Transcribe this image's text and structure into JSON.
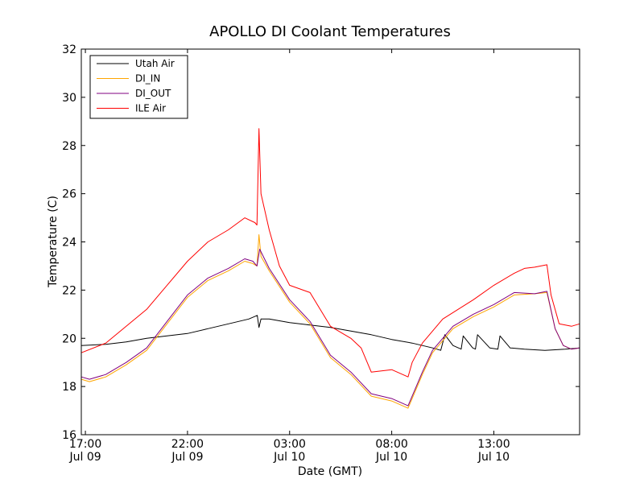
{
  "chart_data": {
    "type": "line",
    "title": "APOLLO DI Coolant Temperatures",
    "xlabel": "Date (GMT)",
    "ylabel": "Temperature (C)",
    "xlim": [
      "2012-07-09 16:48",
      "2012-07-10 17:12"
    ],
    "ylim": [
      16,
      32
    ],
    "yticks": [
      16,
      18,
      20,
      22,
      24,
      26,
      28,
      30,
      32
    ],
    "xticks": [
      {
        "t": "2012-07-09 17:00",
        "time": "17:00",
        "date": "Jul 09"
      },
      {
        "t": "2012-07-09 22:00",
        "time": "22:00",
        "date": "Jul 09"
      },
      {
        "t": "2012-07-10 03:00",
        "time": "03:00",
        "date": "Jul 10"
      },
      {
        "t": "2012-07-10 08:00",
        "time": "08:00",
        "date": "Jul 10"
      },
      {
        "t": "2012-07-10 13:00",
        "time": "13:00",
        "date": "Jul 10"
      }
    ],
    "grid": false,
    "legend": "top-left",
    "series": [
      {
        "name": "Utah Air",
        "color": "#000000",
        "points": [
          [
            "2012-07-09 16:48",
            19.7
          ],
          [
            "2012-07-09 18:00",
            19.75
          ],
          [
            "2012-07-09 19:00",
            19.85
          ],
          [
            "2012-07-09 20:00",
            20.0
          ],
          [
            "2012-07-09 21:00",
            20.1
          ],
          [
            "2012-07-09 22:00",
            20.2
          ],
          [
            "2012-07-09 23:00",
            20.4
          ],
          [
            "2012-07-10 00:00",
            20.6
          ],
          [
            "2012-07-10 01:00",
            20.8
          ],
          [
            "2012-07-10 01:25",
            20.95
          ],
          [
            "2012-07-10 01:30",
            20.45
          ],
          [
            "2012-07-10 01:36",
            20.8
          ],
          [
            "2012-07-10 02:00",
            20.8
          ],
          [
            "2012-07-10 03:00",
            20.65
          ],
          [
            "2012-07-10 04:00",
            20.55
          ],
          [
            "2012-07-10 05:00",
            20.45
          ],
          [
            "2012-07-10 06:00",
            20.3
          ],
          [
            "2012-07-10 07:00",
            20.15
          ],
          [
            "2012-07-10 08:00",
            19.95
          ],
          [
            "2012-07-10 09:00",
            19.8
          ],
          [
            "2012-07-10 10:00",
            19.6
          ],
          [
            "2012-07-10 10:24",
            19.5
          ],
          [
            "2012-07-10 10:36",
            20.15
          ],
          [
            "2012-07-10 11:00",
            19.7
          ],
          [
            "2012-07-10 11:24",
            19.55
          ],
          [
            "2012-07-10 11:30",
            20.1
          ],
          [
            "2012-07-10 11:58",
            19.6
          ],
          [
            "2012-07-10 12:06",
            19.55
          ],
          [
            "2012-07-10 12:12",
            20.15
          ],
          [
            "2012-07-10 12:48",
            19.6
          ],
          [
            "2012-07-10 13:12",
            19.55
          ],
          [
            "2012-07-10 13:18",
            20.1
          ],
          [
            "2012-07-10 13:48",
            19.6
          ],
          [
            "2012-07-10 14:30",
            19.55
          ],
          [
            "2012-07-10 15:30",
            19.5
          ],
          [
            "2012-07-10 16:30",
            19.55
          ],
          [
            "2012-07-10 17:12",
            19.6
          ]
        ]
      },
      {
        "name": "DI_IN",
        "color": "#ffa500",
        "points": [
          [
            "2012-07-09 16:48",
            18.3
          ],
          [
            "2012-07-09 17:12",
            18.2
          ],
          [
            "2012-07-09 18:00",
            18.4
          ],
          [
            "2012-07-09 19:00",
            18.9
          ],
          [
            "2012-07-09 20:00",
            19.5
          ],
          [
            "2012-07-09 21:00",
            20.6
          ],
          [
            "2012-07-09 22:00",
            21.7
          ],
          [
            "2012-07-09 23:00",
            22.4
          ],
          [
            "2012-07-10 00:00",
            22.8
          ],
          [
            "2012-07-10 00:48",
            23.2
          ],
          [
            "2012-07-10 01:12",
            23.1
          ],
          [
            "2012-07-10 01:24",
            23.0
          ],
          [
            "2012-07-10 01:30",
            24.3
          ],
          [
            "2012-07-10 01:36",
            23.4
          ],
          [
            "2012-07-10 02:00",
            22.8
          ],
          [
            "2012-07-10 03:00",
            21.5
          ],
          [
            "2012-07-10 04:00",
            20.6
          ],
          [
            "2012-07-10 05:00",
            19.2
          ],
          [
            "2012-07-10 06:00",
            18.5
          ],
          [
            "2012-07-10 07:00",
            17.6
          ],
          [
            "2012-07-10 08:00",
            17.4
          ],
          [
            "2012-07-10 08:48",
            17.1
          ],
          [
            "2012-07-10 09:30",
            18.5
          ],
          [
            "2012-07-10 10:00",
            19.4
          ],
          [
            "2012-07-10 11:00",
            20.4
          ],
          [
            "2012-07-10 12:00",
            20.9
          ],
          [
            "2012-07-10 13:00",
            21.3
          ],
          [
            "2012-07-10 14:00",
            21.8
          ],
          [
            "2012-07-10 15:00",
            21.85
          ],
          [
            "2012-07-10 15:36",
            21.9
          ],
          [
            "2012-07-10 16:00",
            20.4
          ],
          [
            "2012-07-10 16:24",
            19.7
          ],
          [
            "2012-07-10 16:48",
            19.55
          ],
          [
            "2012-07-10 17:12",
            19.6
          ]
        ]
      },
      {
        "name": "DI_OUT",
        "color": "#800080",
        "points": [
          [
            "2012-07-09 16:48",
            18.4
          ],
          [
            "2012-07-09 17:12",
            18.3
          ],
          [
            "2012-07-09 18:00",
            18.5
          ],
          [
            "2012-07-09 19:00",
            19.0
          ],
          [
            "2012-07-09 20:00",
            19.6
          ],
          [
            "2012-07-09 21:00",
            20.7
          ],
          [
            "2012-07-09 22:00",
            21.8
          ],
          [
            "2012-07-09 23:00",
            22.5
          ],
          [
            "2012-07-10 00:00",
            22.9
          ],
          [
            "2012-07-10 00:48",
            23.3
          ],
          [
            "2012-07-10 01:12",
            23.2
          ],
          [
            "2012-07-10 01:24",
            23.0
          ],
          [
            "2012-07-10 01:32",
            23.7
          ],
          [
            "2012-07-10 02:00",
            22.9
          ],
          [
            "2012-07-10 03:00",
            21.6
          ],
          [
            "2012-07-10 04:00",
            20.7
          ],
          [
            "2012-07-10 05:00",
            19.3
          ],
          [
            "2012-07-10 06:00",
            18.6
          ],
          [
            "2012-07-10 07:00",
            17.7
          ],
          [
            "2012-07-10 08:00",
            17.5
          ],
          [
            "2012-07-10 08:48",
            17.2
          ],
          [
            "2012-07-10 09:30",
            18.6
          ],
          [
            "2012-07-10 10:00",
            19.5
          ],
          [
            "2012-07-10 11:00",
            20.5
          ],
          [
            "2012-07-10 12:00",
            21.0
          ],
          [
            "2012-07-10 13:00",
            21.4
          ],
          [
            "2012-07-10 14:00",
            21.9
          ],
          [
            "2012-07-10 15:00",
            21.85
          ],
          [
            "2012-07-10 15:36",
            21.95
          ],
          [
            "2012-07-10 16:00",
            20.4
          ],
          [
            "2012-07-10 16:24",
            19.7
          ],
          [
            "2012-07-10 16:48",
            19.55
          ],
          [
            "2012-07-10 17:12",
            19.6
          ]
        ]
      },
      {
        "name": "ILE Air",
        "color": "#ff0000",
        "points": [
          [
            "2012-07-09 16:48",
            19.4
          ],
          [
            "2012-07-09 18:00",
            19.8
          ],
          [
            "2012-07-09 19:00",
            20.5
          ],
          [
            "2012-07-09 20:00",
            21.2
          ],
          [
            "2012-07-09 21:00",
            22.2
          ],
          [
            "2012-07-09 22:00",
            23.2
          ],
          [
            "2012-07-09 23:00",
            24.0
          ],
          [
            "2012-07-10 00:00",
            24.5
          ],
          [
            "2012-07-10 00:48",
            25.0
          ],
          [
            "2012-07-10 01:18",
            24.8
          ],
          [
            "2012-07-10 01:24",
            24.7
          ],
          [
            "2012-07-10 01:30",
            28.7
          ],
          [
            "2012-07-10 01:36",
            26.0
          ],
          [
            "2012-07-10 02:00",
            24.5
          ],
          [
            "2012-07-10 02:30",
            23.0
          ],
          [
            "2012-07-10 03:00",
            22.2
          ],
          [
            "2012-07-10 04:00",
            21.9
          ],
          [
            "2012-07-10 05:00",
            20.5
          ],
          [
            "2012-07-10 06:00",
            20.0
          ],
          [
            "2012-07-10 06:30",
            19.6
          ],
          [
            "2012-07-10 07:00",
            18.6
          ],
          [
            "2012-07-10 08:00",
            18.7
          ],
          [
            "2012-07-10 08:48",
            18.4
          ],
          [
            "2012-07-10 09:00",
            19.0
          ],
          [
            "2012-07-10 09:30",
            19.8
          ],
          [
            "2012-07-10 10:30",
            20.8
          ],
          [
            "2012-07-10 12:00",
            21.6
          ],
          [
            "2012-07-10 13:00",
            22.2
          ],
          [
            "2012-07-10 14:00",
            22.7
          ],
          [
            "2012-07-10 14:30",
            22.9
          ],
          [
            "2012-07-10 15:00",
            22.95
          ],
          [
            "2012-07-10 15:36",
            23.05
          ],
          [
            "2012-07-10 15:48",
            21.8
          ],
          [
            "2012-07-10 16:12",
            20.6
          ],
          [
            "2012-07-10 16:48",
            20.5
          ],
          [
            "2012-07-10 17:12",
            20.6
          ]
        ]
      }
    ]
  }
}
